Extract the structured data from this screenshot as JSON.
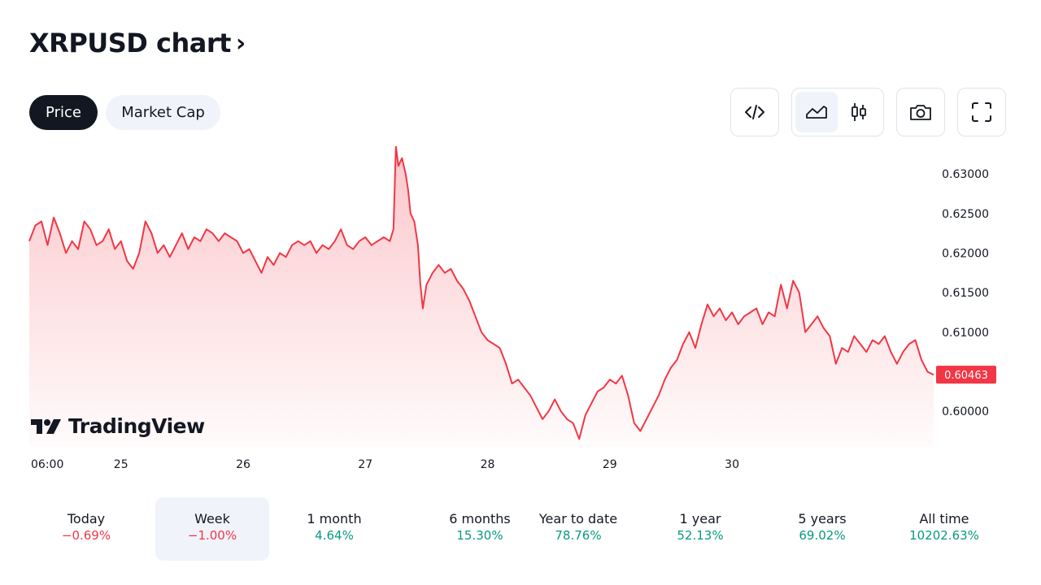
{
  "header": {
    "title": "XRPUSD chart",
    "chevron": "›"
  },
  "tabs": [
    {
      "label": "Price",
      "active": true
    },
    {
      "label": "Market Cap",
      "active": false
    }
  ],
  "toolbar": {
    "icons": [
      "embed-code-icon",
      "area-chart-icon",
      "candlestick-icon",
      "camera-icon",
      "fullscreen-icon"
    ],
    "selected_style": "area"
  },
  "logo": {
    "text": "TradingView"
  },
  "colors": {
    "line": "#f23645",
    "positive": "#089981",
    "negative": "#f23645",
    "dark": "#131722",
    "pill_bg": "#f0f3fa"
  },
  "chart_data": {
    "type": "area",
    "title": "",
    "xlabel": "",
    "ylabel": "",
    "x_ticks": [
      {
        "label": "06:00",
        "t": 0.0
      },
      {
        "label": "25",
        "t": 0.75
      },
      {
        "label": "26",
        "t": 1.75
      },
      {
        "label": "27",
        "t": 2.75
      },
      {
        "label": "28",
        "t": 3.75
      },
      {
        "label": "29",
        "t": 4.75
      },
      {
        "label": "30",
        "t": 5.75
      }
    ],
    "y_ticks": [
      "0.63000",
      "0.62500",
      "0.62000",
      "0.61500",
      "0.61000",
      "0.60000"
    ],
    "ylim": [
      0.5955,
      0.6335
    ],
    "last_value": "0.60463",
    "series": [
      {
        "points": [
          [
            0.0,
            0.6215
          ],
          [
            0.05,
            0.6235
          ],
          [
            0.1,
            0.624
          ],
          [
            0.15,
            0.621
          ],
          [
            0.2,
            0.6245
          ],
          [
            0.25,
            0.6225
          ],
          [
            0.3,
            0.62
          ],
          [
            0.35,
            0.6215
          ],
          [
            0.4,
            0.6205
          ],
          [
            0.45,
            0.624
          ],
          [
            0.5,
            0.623
          ],
          [
            0.55,
            0.621
          ],
          [
            0.6,
            0.6215
          ],
          [
            0.65,
            0.623
          ],
          [
            0.7,
            0.6205
          ],
          [
            0.75,
            0.6215
          ],
          [
            0.8,
            0.619
          ],
          [
            0.85,
            0.618
          ],
          [
            0.9,
            0.62
          ],
          [
            0.95,
            0.624
          ],
          [
            1.0,
            0.6225
          ],
          [
            1.05,
            0.62
          ],
          [
            1.1,
            0.621
          ],
          [
            1.15,
            0.6195
          ],
          [
            1.2,
            0.621
          ],
          [
            1.25,
            0.6225
          ],
          [
            1.3,
            0.6205
          ],
          [
            1.35,
            0.622
          ],
          [
            1.4,
            0.6215
          ],
          [
            1.45,
            0.623
          ],
          [
            1.5,
            0.6225
          ],
          [
            1.55,
            0.6215
          ],
          [
            1.6,
            0.6225
          ],
          [
            1.65,
            0.622
          ],
          [
            1.7,
            0.6215
          ],
          [
            1.75,
            0.62
          ],
          [
            1.8,
            0.6205
          ],
          [
            1.85,
            0.619
          ],
          [
            1.9,
            0.6175
          ],
          [
            1.95,
            0.6195
          ],
          [
            2.0,
            0.6185
          ],
          [
            2.05,
            0.62
          ],
          [
            2.1,
            0.6195
          ],
          [
            2.15,
            0.621
          ],
          [
            2.2,
            0.6215
          ],
          [
            2.25,
            0.621
          ],
          [
            2.3,
            0.6215
          ],
          [
            2.35,
            0.62
          ],
          [
            2.4,
            0.621
          ],
          [
            2.45,
            0.6205
          ],
          [
            2.5,
            0.6215
          ],
          [
            2.55,
            0.623
          ],
          [
            2.6,
            0.621
          ],
          [
            2.65,
            0.6205
          ],
          [
            2.7,
            0.6215
          ],
          [
            2.75,
            0.622
          ],
          [
            2.8,
            0.621
          ],
          [
            2.85,
            0.6215
          ],
          [
            2.9,
            0.622
          ],
          [
            2.95,
            0.6215
          ],
          [
            2.98,
            0.623
          ],
          [
            3.0,
            0.6335
          ],
          [
            3.02,
            0.631
          ],
          [
            3.05,
            0.632
          ],
          [
            3.08,
            0.63
          ],
          [
            3.1,
            0.628
          ],
          [
            3.12,
            0.625
          ],
          [
            3.15,
            0.624
          ],
          [
            3.18,
            0.621
          ],
          [
            3.2,
            0.616
          ],
          [
            3.22,
            0.613
          ],
          [
            3.25,
            0.616
          ],
          [
            3.3,
            0.6175
          ],
          [
            3.35,
            0.6185
          ],
          [
            3.4,
            0.6175
          ],
          [
            3.45,
            0.618
          ],
          [
            3.5,
            0.6165
          ],
          [
            3.55,
            0.6155
          ],
          [
            3.6,
            0.614
          ],
          [
            3.65,
            0.612
          ],
          [
            3.7,
            0.61
          ],
          [
            3.75,
            0.609
          ],
          [
            3.8,
            0.6085
          ],
          [
            3.85,
            0.608
          ],
          [
            3.9,
            0.606
          ],
          [
            3.95,
            0.6035
          ],
          [
            4.0,
            0.604
          ],
          [
            4.05,
            0.603
          ],
          [
            4.1,
            0.602
          ],
          [
            4.15,
            0.6005
          ],
          [
            4.2,
            0.599
          ],
          [
            4.25,
            0.6
          ],
          [
            4.3,
            0.6015
          ],
          [
            4.35,
            0.6
          ],
          [
            4.4,
            0.599
          ],
          [
            4.45,
            0.5985
          ],
          [
            4.5,
            0.5965
          ],
          [
            4.55,
            0.5995
          ],
          [
            4.6,
            0.601
          ],
          [
            4.65,
            0.6025
          ],
          [
            4.7,
            0.603
          ],
          [
            4.75,
            0.604
          ],
          [
            4.8,
            0.6035
          ],
          [
            4.85,
            0.6045
          ],
          [
            4.9,
            0.602
          ],
          [
            4.95,
            0.5985
          ],
          [
            5.0,
            0.5975
          ],
          [
            5.05,
            0.599
          ],
          [
            5.1,
            0.6005
          ],
          [
            5.15,
            0.602
          ],
          [
            5.2,
            0.604
          ],
          [
            5.25,
            0.6055
          ],
          [
            5.3,
            0.6065
          ],
          [
            5.35,
            0.6085
          ],
          [
            5.4,
            0.61
          ],
          [
            5.45,
            0.608
          ],
          [
            5.5,
            0.611
          ],
          [
            5.55,
            0.6135
          ],
          [
            5.6,
            0.612
          ],
          [
            5.65,
            0.613
          ],
          [
            5.7,
            0.6115
          ],
          [
            5.75,
            0.6125
          ],
          [
            5.8,
            0.611
          ],
          [
            5.85,
            0.612
          ],
          [
            5.9,
            0.6125
          ],
          [
            5.95,
            0.613
          ],
          [
            6.0,
            0.611
          ],
          [
            6.05,
            0.6125
          ],
          [
            6.1,
            0.612
          ],
          [
            6.15,
            0.616
          ],
          [
            6.2,
            0.613
          ],
          [
            6.25,
            0.6165
          ],
          [
            6.3,
            0.615
          ],
          [
            6.35,
            0.61
          ],
          [
            6.4,
            0.611
          ],
          [
            6.45,
            0.612
          ],
          [
            6.5,
            0.6105
          ],
          [
            6.55,
            0.6095
          ],
          [
            6.6,
            0.606
          ],
          [
            6.65,
            0.608
          ],
          [
            6.7,
            0.6075
          ],
          [
            6.75,
            0.6095
          ],
          [
            6.8,
            0.6085
          ],
          [
            6.85,
            0.6075
          ],
          [
            6.9,
            0.609
          ],
          [
            6.95,
            0.6085
          ],
          [
            7.0,
            0.6095
          ],
          [
            7.05,
            0.6075
          ],
          [
            7.1,
            0.606
          ],
          [
            7.15,
            0.6075
          ],
          [
            7.2,
            0.6085
          ],
          [
            7.25,
            0.609
          ],
          [
            7.3,
            0.6065
          ],
          [
            7.35,
            0.605
          ],
          [
            7.4,
            0.6046
          ]
        ]
      }
    ]
  },
  "periods": [
    {
      "label": "Today",
      "value": "−0.69%",
      "trend": "neg",
      "selected": false
    },
    {
      "label": "Week",
      "value": "−1.00%",
      "trend": "neg",
      "selected": true
    },
    {
      "label": "1 month",
      "value": "4.64%",
      "trend": "pos",
      "selected": false
    },
    {
      "label": "6 months",
      "value": "15.30%",
      "trend": "pos",
      "selected": false
    },
    {
      "label": "Year to date",
      "value": "78.76%",
      "trend": "pos",
      "selected": false
    },
    {
      "label": "1 year",
      "value": "52.13%",
      "trend": "pos",
      "selected": false
    },
    {
      "label": "5 years",
      "value": "69.02%",
      "trend": "pos",
      "selected": false
    },
    {
      "label": "All time",
      "value": "10202.63%",
      "trend": "pos",
      "selected": false
    }
  ]
}
